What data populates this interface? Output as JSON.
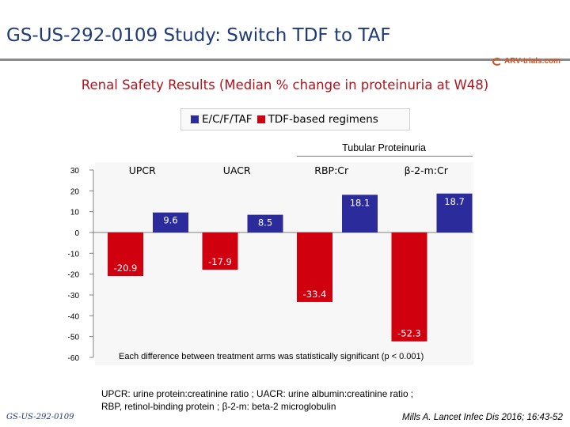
{
  "header": {
    "title": "GS-US-292-0109 Study: Switch TDF to TAF",
    "logo_text": "ARV-trials.com"
  },
  "subtitle": "Renal Safety Results (Median % change in proteinuria at W48)",
  "legend": {
    "items": [
      {
        "label": "E/C/F/TAF",
        "color": "#2b2b9c"
      },
      {
        "label": "TDF-based regimens",
        "color": "#d0000f"
      }
    ]
  },
  "group_header": "Tubular Proteinuria",
  "chart_data": {
    "type": "bar",
    "categories": [
      "UPCR",
      "UACR",
      "RBP:Cr",
      "β-2-m:Cr"
    ],
    "series": [
      {
        "name": "E/C/F/TAF",
        "color": "#2b2b9c",
        "values": [
          9.6,
          8.5,
          18.1,
          18.7
        ],
        "labels": [
          "9.6",
          "8.5",
          "18.1",
          "18.7"
        ]
      },
      {
        "name": "TDF-based regimens",
        "color": "#d0000f",
        "values": [
          -20.9,
          -17.9,
          -33.4,
          -52.3
        ],
        "labels": [
          "-20.9",
          "-17.9",
          "-33.4",
          "-52.3"
        ]
      }
    ],
    "ylim": [
      -60,
      30
    ],
    "yticks": [
      30,
      20,
      10,
      0,
      -10,
      -20,
      -30,
      -40,
      -50,
      -60
    ],
    "ytick_labels": [
      "30",
      "20",
      "10",
      "0",
      "-10",
      "-20",
      "-30",
      "-40",
      "-50",
      "-60"
    ],
    "title": "Renal Safety Results (Median % change in proteinuria at W48)",
    "xlabel": "",
    "ylabel": ""
  },
  "note": "Each difference between treatment arms was statistically significant (p < 0.001)",
  "footer": {
    "definitions_line1": "UPCR: urine protein:creatinine ratio ; UACR: urine albumin:creatinine ratio ;",
    "definitions_line2": "RBP, retinol-binding protein ; β-2-m: beta-2 microglobulin",
    "study_tag": "GS-US-292-0109",
    "citation": "Mills A. Lancet Infec Dis 2016; 16:43-52"
  }
}
